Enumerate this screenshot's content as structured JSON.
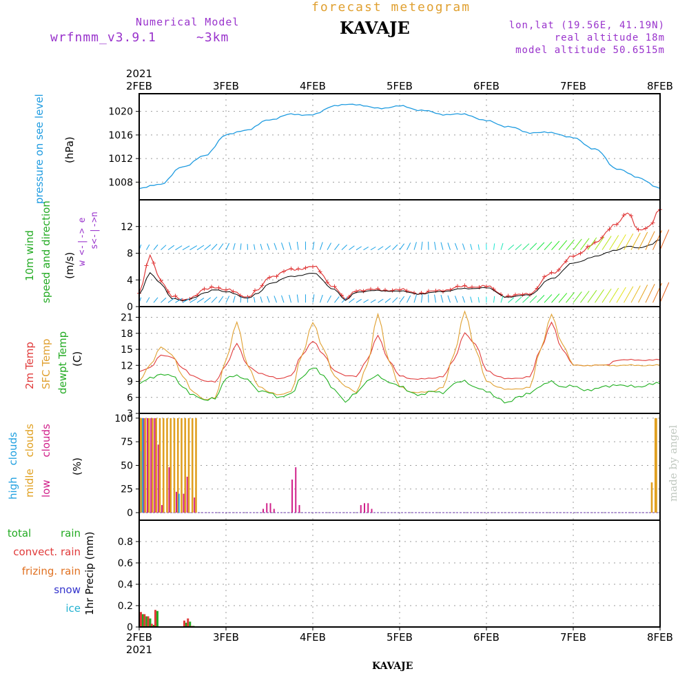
{
  "header": {
    "subtitle": "forecast meteogram",
    "station": "KAVAJE",
    "model_title": "Numerical Model",
    "model_name": "wrfnmm_v3.9.1",
    "model_res": "~3km",
    "lonlat": "lon,lat (19.56E, 41.19N)",
    "real_alt": "real altitude 18m",
    "model_alt": "model altitude  50.6515m",
    "credit": "made by angel",
    "footer_station": "KAVAJE"
  },
  "time_axis": {
    "year": "2021",
    "dates": [
      "2FEB",
      "3FEB",
      "4FEB",
      "5FEB",
      "6FEB",
      "7FEB",
      "8FEB"
    ]
  },
  "colors": {
    "pressure": "#1e9be0",
    "wind_label": "#22aa22",
    "arrow_label": "#9933cc",
    "temp2m": "#e03a3a",
    "sfc": "#e0a030",
    "dewpt": "#20b020",
    "high_cloud": "#20a0e0",
    "mid_cloud": "#e0a020",
    "low_cloud": "#d0208a",
    "total_rain": "#22aa22",
    "convect": "#e03a3a",
    "frizing": "#e07020",
    "snow": "#3333cc",
    "ice": "#20b0d0",
    "header_purple": "#9933cc",
    "header_orange": "#e0a030"
  },
  "panels": {
    "pressure": {
      "labels": [
        "pressure on see level",
        "(hPa)"
      ],
      "ticks": [
        "1008",
        "1012",
        "1016",
        "1020"
      ]
    },
    "wind": {
      "labels": [
        "10m wind",
        "speed and direction",
        "(m/s)"
      ],
      "arrow_labels": [
        "w <-|-> e",
        "s<-|->n"
      ],
      "ticks": [
        "0",
        "4",
        "8",
        "12"
      ]
    },
    "temp": {
      "labels": [
        "2m Temp",
        "SFC Temp",
        "dewpt Temp",
        "(C)"
      ],
      "ticks": [
        "3",
        "6",
        "9",
        "12",
        "15",
        "18",
        "21"
      ]
    },
    "clouds": {
      "labels": [
        "high clouds",
        "midle clouds",
        "low clouds",
        "(%)"
      ],
      "ticks": [
        "0",
        "25",
        "50",
        "75",
        "100"
      ]
    },
    "precip": {
      "labels": [
        "total rain",
        "convect. rain",
        "frizing. rain",
        "snow",
        "ice",
        "1hr Precip (mm)"
      ],
      "ticks": [
        "0",
        "0.2",
        "0.4",
        "0.6",
        "0.8"
      ]
    }
  },
  "chart_data": [
    {
      "type": "line",
      "title": "pressure on see level",
      "ylabel": "(hPa)",
      "x_hours": [
        0,
        6,
        12,
        18,
        24,
        30,
        36,
        42,
        48,
        54,
        60,
        66,
        72,
        78,
        84,
        90,
        96,
        102,
        108,
        114,
        120,
        126,
        132,
        138,
        144
      ],
      "series": [
        {
          "name": "pressure on see level",
          "values": [
            1006.9,
            1007.7,
            1010.6,
            1012.4,
            1016.0,
            1016.9,
            1018.6,
            1019.5,
            1019.4,
            1021.0,
            1021.2,
            1020.5,
            1020.9,
            1020.2,
            1019.5,
            1019.5,
            1018.4,
            1017.4,
            1016.4,
            1016.4,
            1015.5,
            1013.6,
            1010.3,
            1008.8,
            1006.9
          ]
        }
      ],
      "ylim": [
        1005,
        1023
      ]
    },
    {
      "type": "line",
      "title": "10m wind speed and direction",
      "ylabel": "(m/s)",
      "x_hours": [
        0,
        3,
        6,
        9,
        12,
        15,
        18,
        21,
        24,
        30,
        33,
        36,
        42,
        48,
        54,
        57,
        60,
        66,
        72,
        78,
        84,
        90,
        96,
        102,
        108,
        114,
        120,
        126,
        132,
        135,
        138,
        141,
        144
      ],
      "series": [
        {
          "name": "10m wind speed",
          "values": [
            2.0,
            7.5,
            4.0,
            1.5,
            1.0,
            1.5,
            2.5,
            3.0,
            2.5,
            1.5,
            2.5,
            4.5,
            5.5,
            6.0,
            3.0,
            1.0,
            2.5,
            2.5,
            2.5,
            2.0,
            2.5,
            3.0,
            3.0,
            1.5,
            2.0,
            5.0,
            7.5,
            9.5,
            12.5,
            14.0,
            11.5,
            12.0,
            14.5
          ]
        },
        {
          "values": [
            1.8,
            5.0,
            3.5,
            1.2,
            0.9,
            1.3,
            2.0,
            2.6,
            2.2,
            1.3,
            2.0,
            3.5,
            4.5,
            5.0,
            2.6,
            0.9,
            2.2,
            2.4,
            2.3,
            1.9,
            2.3,
            2.7,
            2.8,
            1.4,
            1.8,
            4.2,
            6.5,
            7.5,
            8.5,
            9.0,
            8.8,
            9.2,
            10.0
          ]
        }
      ],
      "ylim": [
        0,
        16
      ]
    },
    {
      "type": "line",
      "x_hours": [
        0,
        3,
        6,
        9,
        12,
        15,
        18,
        21,
        24,
        27,
        30,
        33,
        36,
        39,
        42,
        45,
        48,
        51,
        54,
        57,
        60,
        63,
        66,
        69,
        72,
        75,
        78,
        81,
        84,
        87,
        90,
        93,
        96,
        99,
        102,
        105,
        108,
        111,
        114,
        117,
        120,
        123,
        126,
        129,
        132,
        135,
        138,
        141,
        144
      ],
      "series": [
        {
          "name": "2m Temp",
          "values": [
            10.8,
            11.5,
            14,
            13.5,
            11.5,
            10,
            9.0,
            9.0,
            12,
            16,
            12,
            10.5,
            10,
            9.5,
            10,
            14,
            16.5,
            14,
            11,
            10,
            10,
            13,
            17.5,
            13,
            10,
            9.5,
            9.5,
            9.5,
            10,
            13,
            18,
            16,
            11,
            10,
            9.5,
            9.5,
            10,
            15,
            20,
            15,
            12,
            12,
            12,
            12,
            13,
            13,
            13,
            13,
            13
          ]
        },
        {
          "name": "SFC Temp",
          "values": [
            9.0,
            12,
            15.5,
            14,
            10,
            7,
            5.5,
            6.0,
            13,
            20,
            12,
            8,
            7,
            6.5,
            7,
            14,
            20,
            15,
            10,
            8,
            7,
            12,
            21.5,
            13,
            8,
            7,
            7,
            7,
            8,
            14,
            22,
            15,
            9,
            8,
            7.5,
            7.5,
            8,
            15,
            21.5,
            16,
            12,
            12,
            12,
            12,
            12,
            12,
            12,
            12,
            12
          ]
        },
        {
          "name": "dewpt Temp",
          "values": [
            8.5,
            9.5,
            10.5,
            10,
            8,
            6.5,
            5.3,
            6.0,
            9.5,
            10,
            9.5,
            7,
            7,
            6,
            6.5,
            10,
            11.5,
            10,
            7.5,
            5,
            7,
            9,
            10,
            9,
            8,
            7,
            6.5,
            7,
            7,
            8.5,
            9,
            8,
            7,
            6,
            5,
            6,
            7,
            8,
            9,
            8,
            8,
            7.5,
            7.5,
            8,
            8.5,
            8,
            8,
            8.5,
            8.5
          ]
        }
      ],
      "ylim": [
        3,
        23
      ]
    },
    {
      "type": "bar",
      "x_hours": [
        0,
        1,
        2,
        3,
        4,
        5,
        6,
        7,
        8,
        9,
        10,
        11,
        12,
        13,
        14,
        15,
        16,
        34,
        35,
        36,
        37,
        42,
        43,
        44,
        61,
        62,
        63,
        64,
        142,
        143,
        144
      ],
      "series": [
        {
          "name": "high clouds",
          "values": [
            65,
            100,
            0,
            0,
            0,
            0,
            0,
            0,
            0,
            0,
            0,
            20,
            0,
            0,
            0,
            0,
            0,
            0,
            0,
            0,
            0,
            0,
            0,
            0,
            0,
            0,
            0,
            0,
            0,
            0,
            0
          ]
        },
        {
          "name": "midle clouds",
          "values": [
            100,
            100,
            100,
            100,
            100,
            100,
            100,
            100,
            100,
            100,
            100,
            100,
            100,
            100,
            100,
            100,
            100,
            0,
            0,
            0,
            0,
            0,
            0,
            0,
            0,
            0,
            0,
            0,
            32,
            100,
            100
          ]
        },
        {
          "name": "low clouds",
          "values": [
            100,
            100,
            100,
            100,
            100,
            72,
            8,
            0,
            48,
            0,
            22,
            0,
            20,
            38,
            0,
            16,
            0,
            4,
            10,
            10,
            4,
            35,
            48,
            8,
            8,
            10,
            10,
            4,
            0,
            0,
            0
          ]
        }
      ],
      "ylim": [
        0,
        100
      ]
    },
    {
      "type": "bar",
      "ylabel": "1hr Precip (mm)",
      "x_hours": [
        0,
        1,
        2,
        3,
        4,
        12,
        13,
        14
      ],
      "series": [
        {
          "name": "total rain",
          "values": [
            0.12,
            0.1,
            0.08,
            0.02,
            0.15,
            0.04,
            0.05,
            0.01
          ]
        },
        {
          "name": "convect. rain",
          "values": [
            0.14,
            0.12,
            0.1,
            0.03,
            0.16,
            0.06,
            0.08,
            0.01
          ]
        }
      ],
      "ylim": [
        0,
        1.0
      ]
    }
  ]
}
